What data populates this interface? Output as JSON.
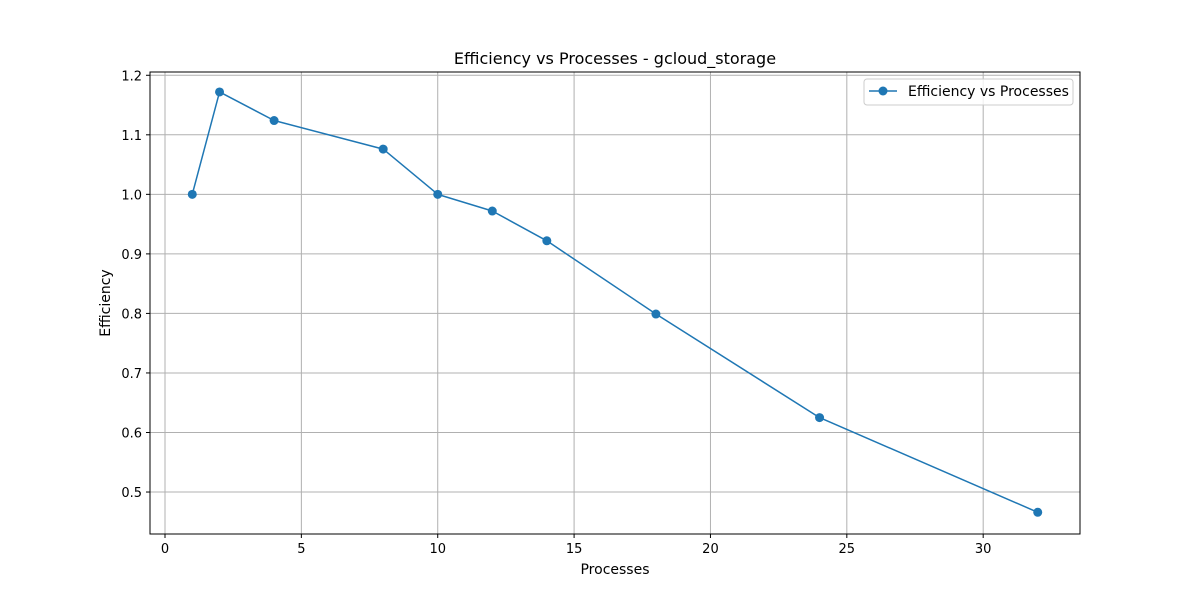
{
  "chart_data": {
    "type": "line",
    "title": "Efficiency vs Processes  - gcloud_storage",
    "xlabel": "Processes",
    "ylabel": "Efficiency",
    "xlim": [
      -0.55,
      33.55
    ],
    "ylim": [
      0.4295,
      1.2055
    ],
    "xticks": [
      0,
      5,
      10,
      15,
      20,
      25,
      30
    ],
    "yticks": [
      0.5,
      0.6,
      0.7,
      0.8,
      0.9,
      1.0,
      1.1,
      1.2
    ],
    "ytick_labels": [
      "0.5",
      "0.6",
      "0.7",
      "0.8",
      "0.9",
      "1.0",
      "1.1",
      "1.2"
    ],
    "grid": true,
    "legend_position": "top-right",
    "series": [
      {
        "name": "Efficiency vs Processes",
        "color": "#1f77b4",
        "marker": "circle",
        "x": [
          1,
          2,
          4,
          8,
          10,
          12,
          14,
          18,
          24,
          32
        ],
        "y": [
          1.0,
          1.172,
          1.124,
          1.076,
          1.0,
          0.972,
          0.922,
          0.799,
          0.625,
          0.466
        ]
      }
    ]
  }
}
